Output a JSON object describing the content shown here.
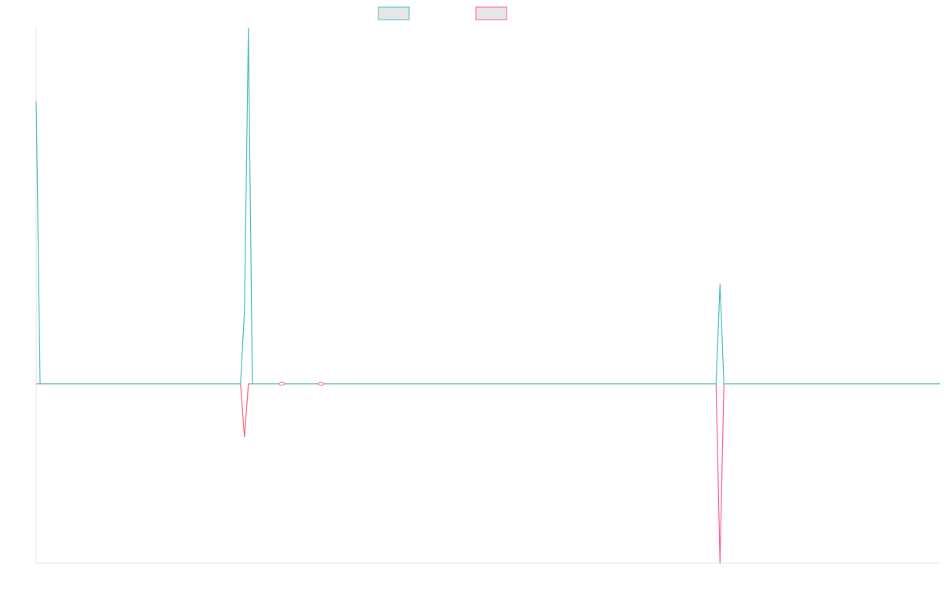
{
  "chart_data": {
    "type": "line",
    "title": "",
    "xlabel": "",
    "ylabel": "",
    "x": [
      0,
      1,
      52,
      53,
      54,
      55,
      62,
      63,
      72,
      73,
      172,
      173,
      174,
      175,
      176,
      230
    ],
    "series": [
      {
        "color": "#4bc0c0",
        "values": [
          0.85,
          0,
          0,
          0.22,
          1.07,
          0,
          0,
          0,
          0,
          0,
          0,
          0,
          0.3,
          0,
          0,
          0
        ]
      },
      {
        "color": "#ff6384",
        "values": [
          0,
          0,
          0,
          -0.16,
          0,
          0,
          0,
          0,
          0,
          0,
          0,
          0,
          -0.54,
          0,
          0,
          0
        ]
      }
    ],
    "point_markers": [
      {
        "x": 62.5,
        "y": 0,
        "color": "#ff6384"
      },
      {
        "x": 72.5,
        "y": 0,
        "color": "#ff6384"
      }
    ],
    "xlim": [
      0,
      230
    ],
    "ylim": [
      -0.54,
      1.07
    ],
    "grid": false,
    "legend_position": "top",
    "legend": [
      {
        "color": "#4bc0c0",
        "fill": "#e6e6e6"
      },
      {
        "color": "#ff6384",
        "fill": "#e6e6e6"
      }
    ]
  }
}
